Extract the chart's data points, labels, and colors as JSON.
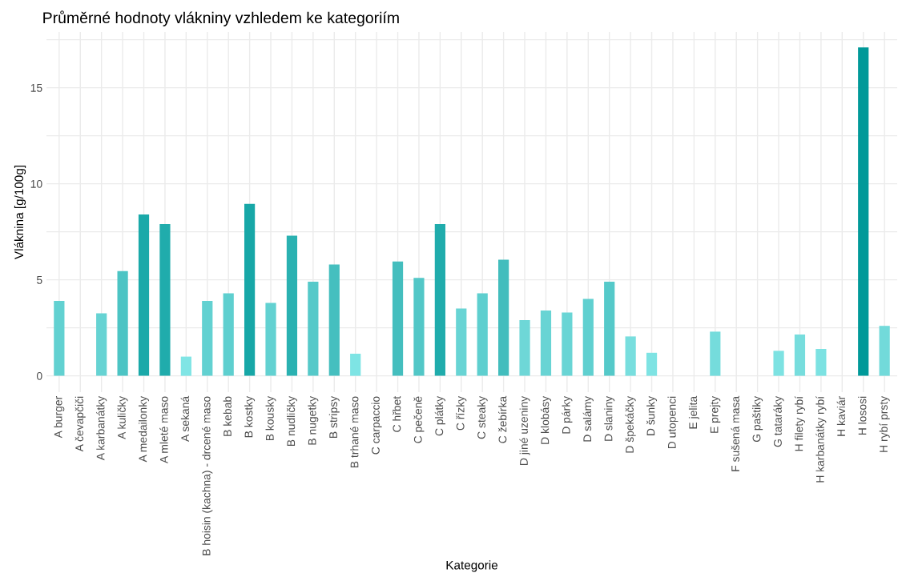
{
  "chart_data": {
    "type": "bar",
    "title": "Průměrné hodnoty vlákniny vzhledem ke kategoriím",
    "xlabel": "Kategorie",
    "ylabel": "Vláknina [g/100g]",
    "categories": [
      "A burger",
      "A čevapčiči",
      "A karbanátky",
      "A kuličky",
      "A medailonky",
      "A mleté maso",
      "A sekaná",
      "B hoisin (kachna) - drcené maso",
      "B kebab",
      "B kostky",
      "B kousky",
      "B nudličky",
      "B nugetky",
      "B stripsy",
      "B trhané maso",
      "C carpaccio",
      "C hřbet",
      "C pečeně",
      "C plátky",
      "C řízky",
      "C steaky",
      "C žebírka",
      "D jiné uzeniny",
      "D klobásy",
      "D párky",
      "D salámy",
      "D slaniny",
      "D špekáčky",
      "D šunky",
      "D utopenci",
      "E jelita",
      "E prejty",
      "F sušená masa",
      "G paštiky",
      "G tataráky",
      "H filety rybí",
      "H karbanátky rybí",
      "H kaviár",
      "H lososi",
      "H rybí prsty"
    ],
    "values": [
      3.9,
      0,
      3.25,
      5.45,
      8.4,
      7.9,
      1.0,
      3.9,
      4.3,
      8.95,
      3.8,
      7.3,
      4.9,
      5.8,
      1.15,
      0,
      5.95,
      5.1,
      7.9,
      3.5,
      4.3,
      6.05,
      2.9,
      3.4,
      3.3,
      4.0,
      4.9,
      2.05,
      1.2,
      0,
      0,
      2.3,
      0,
      0,
      1.3,
      2.15,
      1.4,
      0,
      17.1,
      2.6
    ],
    "colors": [
      "#62d1d1",
      "#82e6e6",
      "#66d3d3",
      "#4cc4c4",
      "#1aa9a9",
      "#20acac",
      "#80e5e5",
      "#62d1d1",
      "#5ecfcf",
      "#17a7a7",
      "#62d1d1",
      "#2ab1b1",
      "#55c9c9",
      "#45bfbf",
      "#7ee4e4",
      "#82e6e6",
      "#44bebe",
      "#52c7c7",
      "#20acac",
      "#68d4d4",
      "#5ecfcf",
      "#42bdbd",
      "#6ed7d7",
      "#68d4d4",
      "#69d5d5",
      "#60d0d0",
      "#55c9c9",
      "#78dede",
      "#7ee3e3",
      "#82e6e6",
      "#82e6e6",
      "#75dcdc",
      "#82e6e6",
      "#82e6e6",
      "#7de2e2",
      "#77dddd",
      "#7ce2e2",
      "#82e6e6",
      "#009999",
      "#72dada"
    ],
    "ylim": [
      -0.85,
      17.9
    ],
    "yticks": [
      0,
      {
        "value": 2.5,
        "label": null
      },
      5,
      {
        "value": 7.5,
        "label": null
      },
      10,
      {
        "value": 12.5,
        "label": null
      },
      15,
      {
        "value": 17.5,
        "label": null
      }
    ],
    "grid": true
  }
}
